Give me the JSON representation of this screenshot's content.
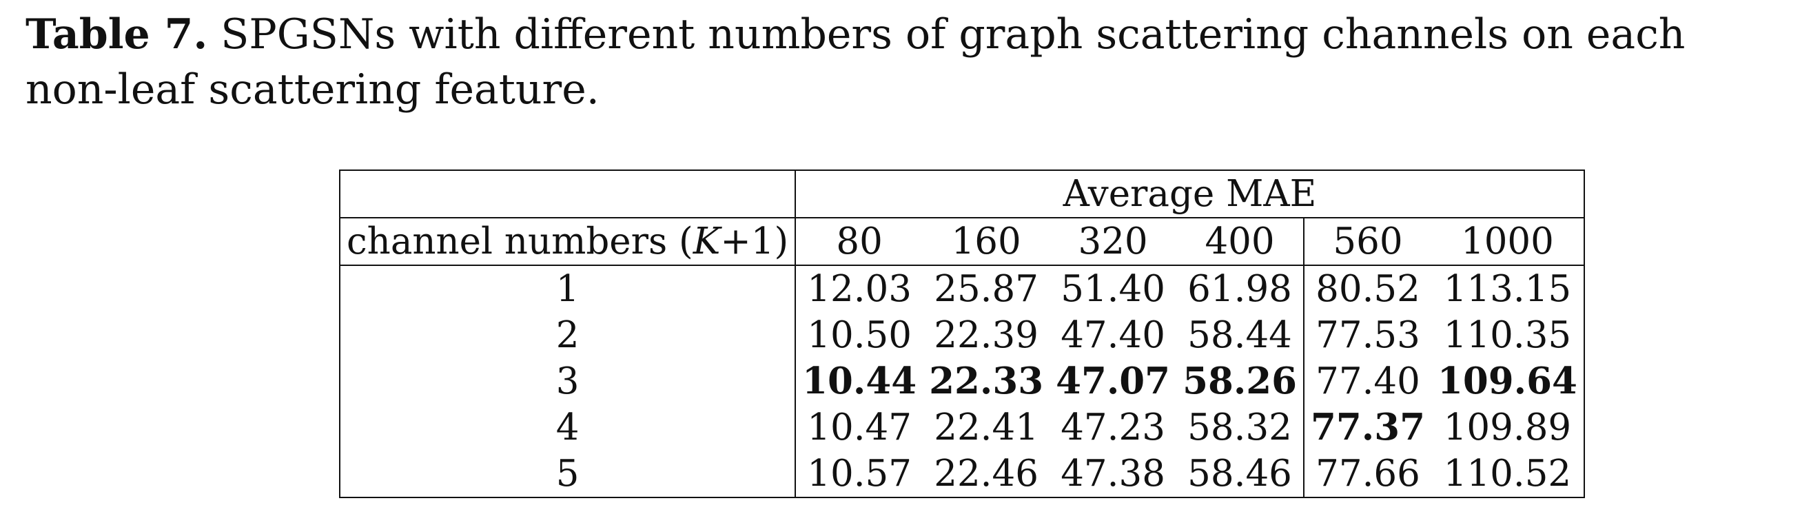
{
  "caption": {
    "label": "Table 7.",
    "text": " SPGSNs with different numbers of graph scattering channels on each non-leaf scattering feature."
  },
  "table": {
    "group_header": "Average MAE",
    "first_col_header_prefix": "channel numbers (",
    "first_col_header_var": "K",
    "first_col_header_suffix": "+1)",
    "columns": [
      "80",
      "160",
      "320",
      "400",
      "560",
      "1000"
    ],
    "rows": [
      {
        "label": "1",
        "values": [
          "12.03",
          "25.87",
          "51.40",
          "61.98",
          "80.52",
          "113.15"
        ],
        "bold": [
          false,
          false,
          false,
          false,
          false,
          false
        ]
      },
      {
        "label": "2",
        "values": [
          "10.50",
          "22.39",
          "47.40",
          "58.44",
          "77.53",
          "110.35"
        ],
        "bold": [
          false,
          false,
          false,
          false,
          false,
          false
        ]
      },
      {
        "label": "3",
        "values": [
          "10.44",
          "22.33",
          "47.07",
          "58.26",
          "77.40",
          "109.64"
        ],
        "bold": [
          true,
          true,
          true,
          true,
          false,
          true
        ]
      },
      {
        "label": "4",
        "values": [
          "10.47",
          "22.41",
          "47.23",
          "58.32",
          "77.37",
          "109.89"
        ],
        "bold": [
          false,
          false,
          false,
          false,
          true,
          false
        ]
      },
      {
        "label": "5",
        "values": [
          "10.57",
          "22.46",
          "47.38",
          "58.46",
          "77.66",
          "110.52"
        ],
        "bold": [
          false,
          false,
          false,
          false,
          false,
          false
        ]
      }
    ]
  }
}
